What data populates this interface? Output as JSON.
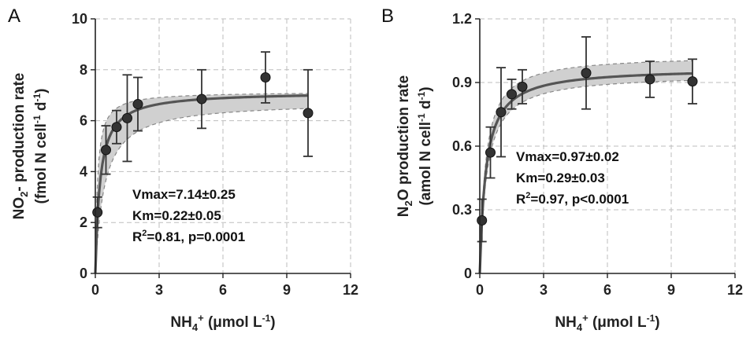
{
  "chart_data": [
    {
      "type": "scatter",
      "panel": "A",
      "ylabel": {
        "main": "NO",
        "sub": "2",
        "rest": "- production rate"
      },
      "ylabel2": {
        "main": "(fmol N cell",
        "sup1": "-1",
        "mid": " d",
        "sup2": "-1",
        "end": ")"
      },
      "xlabel": {
        "main": "NH",
        "sub": "4",
        "sup": "+",
        "rest": " (μmol L",
        "sup2": "-1",
        "end": ")"
      },
      "xlim": [
        0,
        12
      ],
      "ylim": [
        0,
        10
      ],
      "xticks": [
        0,
        3,
        6,
        9,
        12
      ],
      "yticks": [
        0,
        2,
        4,
        6,
        8,
        10
      ],
      "grid": true,
      "points": [
        {
          "x": 0.1,
          "y": 2.4,
          "err": 0.6
        },
        {
          "x": 0.5,
          "y": 4.85,
          "err": 0.95
        },
        {
          "x": 1.0,
          "y": 5.75,
          "err": 0.65
        },
        {
          "x": 1.5,
          "y": 6.1,
          "err": 1.7
        },
        {
          "x": 2.0,
          "y": 6.65,
          "err": 1.05
        },
        {
          "x": 5.0,
          "y": 6.85,
          "err": 1.15
        },
        {
          "x": 8.0,
          "y": 7.7,
          "err": 1.0
        },
        {
          "x": 10.0,
          "y": 6.3,
          "err": 1.7
        }
      ],
      "fit": {
        "vmax": 7.14,
        "km": 0.22
      },
      "ci_upper_vmax": 7.14,
      "ci_upper_km": 0.1,
      "ci_lower_vmax": 6.75,
      "ci_lower_km": 0.42,
      "stats": [
        "Vmax=7.14±0.25",
        "Km=0.22±0.05"
      ],
      "r2": {
        "pre": "R",
        "sup": "2",
        "post": "=0.81, p=0.0001"
      }
    },
    {
      "type": "scatter",
      "panel": "B",
      "ylabel": {
        "main": "N",
        "sub": "2",
        "rest": "O production rate"
      },
      "ylabel2": {
        "main": "(amol N cell",
        "sup1": "-1",
        "mid": " d",
        "sup2": "-1",
        "end": ")"
      },
      "xlabel": {
        "main": "NH",
        "sub": "4",
        "sup": "+",
        "rest": " (μmol L",
        "sup2": "-1",
        "end": ")"
      },
      "xlim": [
        0,
        12
      ],
      "ylim": [
        0,
        1.2
      ],
      "xticks": [
        0,
        3,
        6,
        9,
        12
      ],
      "yticks": [
        0,
        0.3,
        0.6,
        0.9,
        1.2
      ],
      "yticklabels": [
        "0",
        "0.3",
        "0.6",
        "0.9",
        "1.2"
      ],
      "grid": true,
      "points": [
        {
          "x": 0.1,
          "y": 0.25,
          "err": 0.1
        },
        {
          "x": 0.5,
          "y": 0.57,
          "err": 0.12
        },
        {
          "x": 1.0,
          "y": 0.76,
          "err": 0.21
        },
        {
          "x": 1.5,
          "y": 0.845,
          "err": 0.07
        },
        {
          "x": 2.0,
          "y": 0.88,
          "err": 0.08
        },
        {
          "x": 5.0,
          "y": 0.945,
          "err": 0.17
        },
        {
          "x": 8.0,
          "y": 0.915,
          "err": 0.085
        },
        {
          "x": 10.0,
          "y": 0.905,
          "err": 0.105
        }
      ],
      "fit": {
        "vmax": 0.97,
        "km": 0.29
      },
      "ci_upper_vmax": 1.03,
      "ci_upper_km": 0.27,
      "ci_lower_vmax": 0.94,
      "ci_lower_km": 0.33,
      "stats": [
        "Vmax=0.97±0.02",
        "Km=0.29±0.03"
      ],
      "r2": {
        "pre": "R",
        "sup": "2",
        "post": "=0.97, p<0.0001"
      }
    }
  ],
  "colors": {
    "band": "#d0d0d0",
    "fit": "#555555",
    "point": "#333333",
    "grid": "#bdbdbd",
    "axis": "#222222"
  }
}
